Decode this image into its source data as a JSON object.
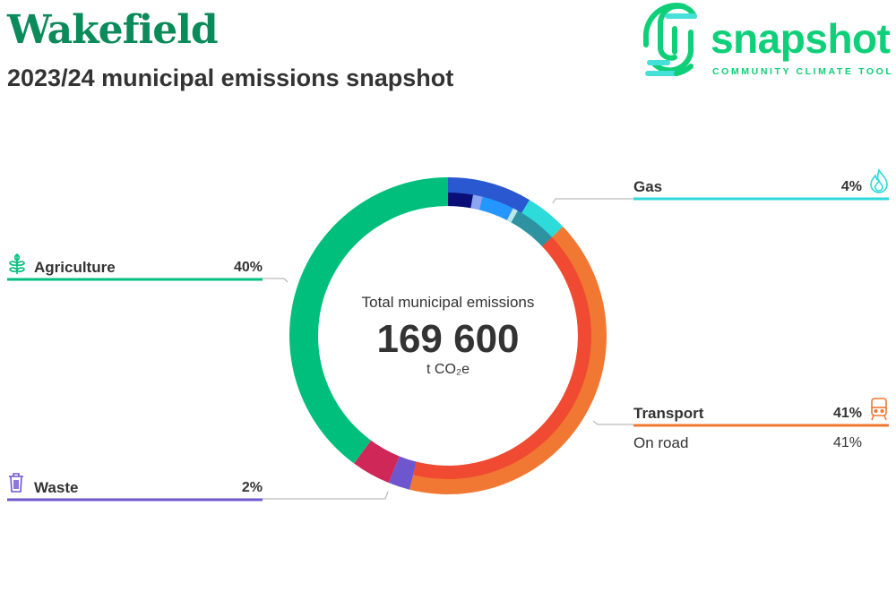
{
  "header": {
    "title": "Wakefield",
    "subtitle": "2023/24 municipal emissions snapshot"
  },
  "logo": {
    "word": "snapshot",
    "tagline": "COMMUNITY CLIMATE TOOL"
  },
  "chart_data": {
    "type": "pie",
    "subtype": "donut",
    "center": {
      "label": "Total municipal emissions",
      "total": "169 600",
      "unit": "t CO₂e"
    },
    "outer_ring": [
      {
        "value": 8.6,
        "color": "#2a58d0"
      },
      {
        "value": 4.3,
        "color": "#2edbdb",
        "label": "Gas",
        "pct_text": "4%"
      },
      {
        "value": 41,
        "color": "#f07832",
        "label": "Transport",
        "pct_text": "41%"
      },
      {
        "value": 2.2,
        "color": "#6e56cf",
        "label": "Waste",
        "pct_text": "2%"
      },
      {
        "value": 4.0,
        "color": "#cf2858"
      },
      {
        "value": 39.9,
        "color": "#00bf7d",
        "label": "Agriculture",
        "pct_text": "40%"
      }
    ],
    "inner_ring": [
      {
        "value": 2.8,
        "color": "#0a0f78"
      },
      {
        "value": 1.1,
        "color": "#8ca5f0"
      },
      {
        "value": 3.6,
        "color": "#2496ff"
      },
      {
        "value": 0.6,
        "color": "#b8e8ea"
      },
      {
        "value": 4.8,
        "color": "#2e92a0"
      },
      {
        "value": 41,
        "color": "#f04a32",
        "label": "On road",
        "pct_text": "41%"
      }
    ]
  },
  "labels": {
    "gas": {
      "name": "Gas",
      "pct": "4%",
      "icon": "flame-icon",
      "color": "#2ed8d8"
    },
    "agriculture": {
      "name": "Agriculture",
      "pct": "40%",
      "icon": "wheat-icon",
      "color": "#00bf7d"
    },
    "transport": {
      "name": "Transport",
      "pct": "41%",
      "icon": "train-icon",
      "color": "#f07832",
      "sub": {
        "name": "On road",
        "pct": "41%"
      }
    },
    "waste": {
      "name": "Waste",
      "pct": "2%",
      "icon": "trash-icon",
      "color": "#6e56cf"
    }
  }
}
